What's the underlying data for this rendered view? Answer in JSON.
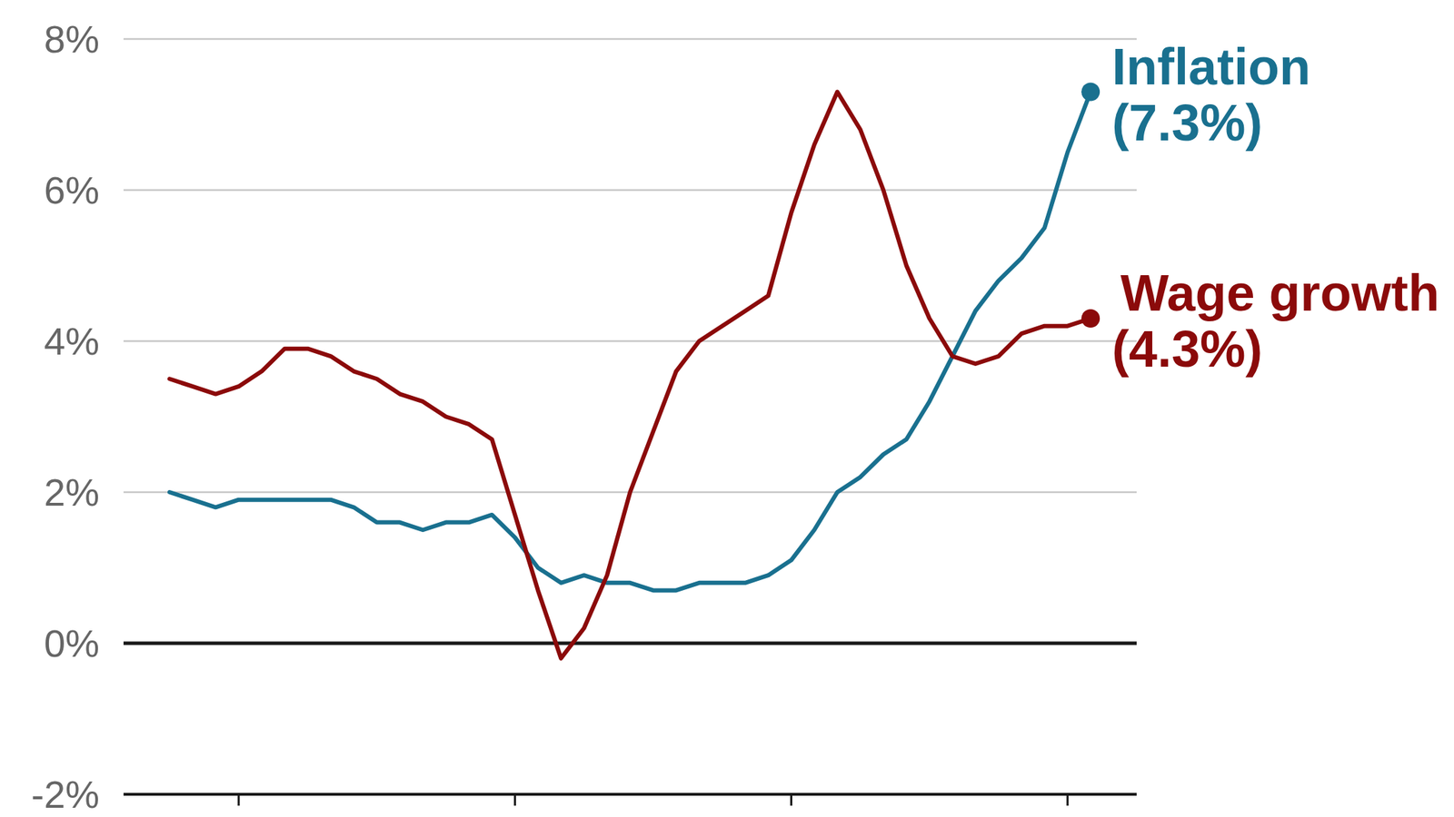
{
  "chart_data": {
    "type": "line",
    "x": [
      0,
      1,
      2,
      3,
      4,
      5,
      6,
      7,
      8,
      9,
      10,
      11,
      12,
      13,
      14,
      15,
      16,
      17,
      18,
      19,
      20,
      21,
      22,
      23,
      24,
      25,
      26,
      27,
      28,
      29,
      30,
      31,
      32,
      33,
      34,
      35,
      36,
      37,
      38,
      39,
      40
    ],
    "xlim": [
      -2,
      42
    ],
    "xticks": [
      3,
      15,
      27,
      39
    ],
    "ylim": [
      -2,
      8
    ],
    "yticks": [
      {
        "value": -2,
        "label": "-2%"
      },
      {
        "value": 0,
        "label": "0%"
      },
      {
        "value": 2,
        "label": "2%"
      },
      {
        "value": 4,
        "label": "4%"
      },
      {
        "value": 6,
        "label": "6%"
      },
      {
        "value": 8,
        "label": "8%"
      }
    ],
    "grid": true,
    "tick_labels": "y",
    "series": [
      {
        "name": "Inflation",
        "color": "#19708f",
        "end_label": "(7.3%)",
        "values": [
          2.0,
          1.9,
          1.8,
          1.9,
          1.9,
          1.9,
          1.9,
          1.9,
          1.8,
          1.6,
          1.6,
          1.5,
          1.6,
          1.6,
          1.7,
          1.4,
          1.0,
          0.8,
          0.9,
          0.8,
          0.8,
          0.7,
          0.7,
          0.8,
          0.8,
          0.8,
          0.9,
          1.1,
          1.5,
          2.0,
          2.2,
          2.5,
          2.7,
          3.2,
          3.8,
          4.4,
          4.8,
          5.1,
          5.5,
          6.5,
          7.3
        ]
      },
      {
        "name": "Wage growth",
        "color": "#8b0a0a",
        "end_label": "(4.3%)",
        "values": [
          3.5,
          3.4,
          3.3,
          3.4,
          3.6,
          3.9,
          3.9,
          3.8,
          3.6,
          3.5,
          3.3,
          3.2,
          3.0,
          2.9,
          2.7,
          1.7,
          0.7,
          -0.2,
          0.2,
          0.9,
          2.0,
          2.8,
          3.6,
          4.0,
          4.2,
          4.4,
          4.6,
          5.7,
          6.6,
          7.3,
          6.8,
          6.0,
          5.0,
          4.3,
          3.8,
          3.7,
          3.8,
          4.1,
          4.2,
          4.2,
          4.3
        ]
      }
    ]
  }
}
